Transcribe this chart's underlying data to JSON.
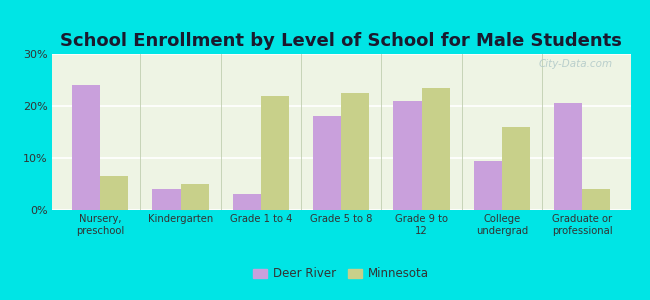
{
  "title": "School Enrollment by Level of School for Male Students",
  "categories": [
    "Nursery,\npreschool",
    "Kindergarten",
    "Grade 1 to 4",
    "Grade 5 to 8",
    "Grade 9 to\n12",
    "College\nundergrad",
    "Graduate or\nprofessional"
  ],
  "deer_river": [
    24.0,
    4.0,
    3.0,
    18.0,
    21.0,
    9.5,
    20.5
  ],
  "minnesota": [
    6.5,
    5.0,
    22.0,
    22.5,
    23.5,
    16.0,
    4.0
  ],
  "deer_river_color": "#c9a0dc",
  "minnesota_color": "#c8d08a",
  "background_color": "#00e5e5",
  "plot_bg_color": "#eef4e4",
  "title_fontsize": 13,
  "title_color": "#1a1a2e",
  "ylim": [
    0,
    30
  ],
  "yticks": [
    0,
    10,
    20,
    30
  ],
  "ytick_labels": [
    "0%",
    "10%",
    "20%",
    "30%"
  ],
  "legend_labels": [
    "Deer River",
    "Minnesota"
  ],
  "bar_width": 0.35,
  "watermark": "City-Data.com"
}
